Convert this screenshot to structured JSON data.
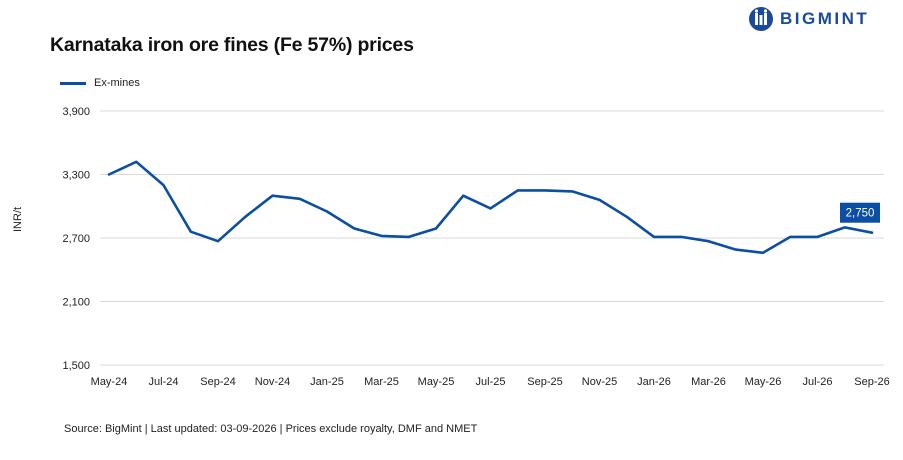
{
  "brand": {
    "name": "BIGMINT",
    "color": "#1a4a9a",
    "icon": "bigmint-logo-icon"
  },
  "source_note": "Source: BigMint | Last updated: 03-09-2026 | Prices exclude royalty, DMF and NMET",
  "chart_data": {
    "type": "line",
    "title": "Karnataka iron ore fines (Fe 57%) prices",
    "xlabel": "",
    "ylabel": "INR/t",
    "ylim": [
      1500,
      3900
    ],
    "yticks": [
      "3,900",
      "3,300",
      "2,700",
      "2,100",
      "1,500"
    ],
    "ytick_values": [
      3900,
      3300,
      2700,
      2100,
      1500
    ],
    "grid": "horizontal",
    "legend_position": "top-left",
    "x_tick_labels": [
      "May-24",
      "Jul-24",
      "Sep-24",
      "Nov-24",
      "Jan-25",
      "Mar-25",
      "May-25",
      "Jul-25",
      "Sep-25",
      "Nov-25",
      "Jan-26",
      "Mar-26",
      "May-26",
      "Jul-26",
      "Sep-26"
    ],
    "x": [
      "May-24",
      "Jun-24",
      "Jul-24",
      "Aug-24",
      "Sep-24",
      "Oct-24",
      "Nov-24",
      "Dec-24",
      "Jan-25",
      "Feb-25",
      "Mar-25",
      "Apr-25",
      "May-25",
      "Jun-25",
      "Jul-25",
      "Aug-25",
      "Sep-25",
      "Oct-25",
      "Nov-25",
      "Dec-25",
      "Jan-26",
      "Feb-26",
      "Mar-26",
      "Apr-26",
      "May-26",
      "Jun-26",
      "Jul-26",
      "Aug-26",
      "Sep-26"
    ],
    "series": [
      {
        "name": "Ex-mines",
        "color": "#0b4ea2",
        "values": [
          3300,
          3420,
          3200,
          2760,
          2670,
          2900,
          3100,
          3070,
          2950,
          2790,
          2720,
          2710,
          2790,
          3100,
          2980,
          3150,
          3150,
          3140,
          3060,
          2900,
          2710,
          2710,
          2670,
          2590,
          2560,
          2710,
          2710,
          2800,
          2750
        ]
      }
    ],
    "annotation": {
      "label": "2,750",
      "value": 2750,
      "x": "Sep-26",
      "color": "#0b4ea2"
    }
  }
}
